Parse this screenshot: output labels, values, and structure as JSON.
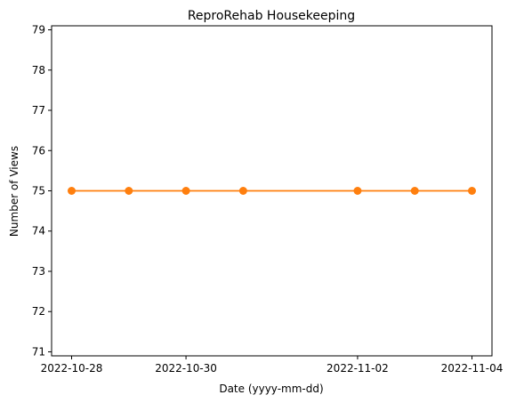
{
  "chart_data": {
    "type": "line",
    "title": "ReproRehab Housekeeping",
    "xlabel": "Date (yyyy-mm-dd)",
    "ylabel": "Number of Views",
    "x": [
      "2022-10-28",
      "2022-10-29",
      "2022-10-30",
      "2022-10-31",
      "2022-11-02",
      "2022-11-03",
      "2022-11-04"
    ],
    "series": [
      {
        "values": [
          75,
          75,
          75,
          75,
          75,
          75,
          75
        ],
        "color": "#ff7f0e",
        "marker": "circle"
      }
    ],
    "xticks": [
      "2022-10-28",
      "2022-10-30",
      "2022-11-02",
      "2022-11-04"
    ],
    "yticks": [
      71,
      72,
      73,
      74,
      75,
      76,
      77,
      78,
      79
    ],
    "ylim": [
      70.9,
      79.1
    ],
    "grid": false,
    "legend": "none"
  }
}
